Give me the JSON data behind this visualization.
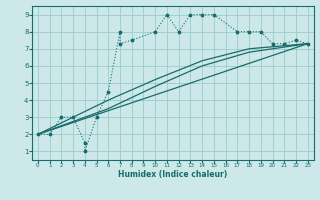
{
  "xlabel": "Humidex (Indice chaleur)",
  "ylabel": "",
  "xlim": [
    -0.5,
    23.5
  ],
  "ylim": [
    0.5,
    9.5
  ],
  "xticks": [
    0,
    1,
    2,
    3,
    4,
    5,
    6,
    7,
    8,
    9,
    10,
    11,
    12,
    13,
    14,
    15,
    16,
    17,
    18,
    19,
    20,
    21,
    22,
    23
  ],
  "yticks": [
    1,
    2,
    3,
    4,
    5,
    6,
    7,
    8,
    9
  ],
  "bg_color": "#cce8e8",
  "grid_color": "#99cccc",
  "line_color": "#1a6b6b",
  "series1_x": [
    0,
    1,
    2,
    3,
    4,
    4,
    5,
    6,
    7,
    7,
    8,
    10,
    11,
    12,
    13,
    14,
    15,
    17,
    18,
    19,
    20,
    21,
    22,
    23
  ],
  "series1_y": [
    2,
    2,
    3,
    3,
    1.5,
    1,
    3,
    4.5,
    8,
    7.3,
    7.5,
    8,
    9,
    8,
    9,
    9,
    9,
    8,
    8,
    8,
    7.3,
    7.3,
    7.5,
    7.3
  ],
  "series2_x": [
    0,
    23
  ],
  "series2_y": [
    2,
    7.3
  ],
  "series3_x": [
    0,
    23
  ],
  "series3_y": [
    2,
    7.3
  ],
  "series4_x": [
    0,
    6,
    10,
    14,
    18,
    23
  ],
  "series4_y": [
    2,
    3.5,
    4.8,
    6.0,
    6.8,
    7.3
  ],
  "series5_x": [
    0,
    6,
    10,
    14,
    18,
    23
  ],
  "series5_y": [
    2,
    4.0,
    5.2,
    6.3,
    7.0,
    7.3
  ]
}
